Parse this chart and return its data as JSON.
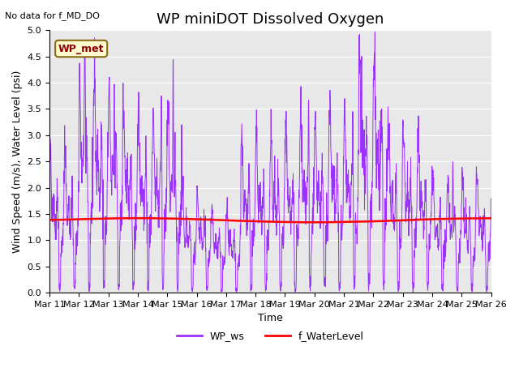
{
  "title": "WP miniDOT Dissolved Oxygen",
  "no_data_label": "No data for f_MD_DO",
  "annotation_label": "WP_met",
  "xlabel": "Time",
  "ylabel": "Wind Speed (m/s), Water Level (psi)",
  "ylim": [
    0.0,
    5.0
  ],
  "yticks": [
    0.0,
    0.5,
    1.0,
    1.5,
    2.0,
    2.5,
    3.0,
    3.5,
    4.0,
    4.5,
    5.0
  ],
  "xtick_labels": [
    "Mar 11",
    "Mar 12",
    "Mar 13",
    "Mar 14",
    "Mar 15",
    "Mar 16",
    "Mar 17",
    "Mar 18",
    "Mar 19",
    "Mar 20",
    "Mar 21",
    "Mar 22",
    "Mar 23",
    "Mar 24",
    "Mar 25",
    "Mar 26"
  ],
  "wp_ws_color": "#9B30FF",
  "f_wl_color": "#FF0000",
  "background_color": "#E8E8E8",
  "legend_wp_ws": "WP_ws",
  "legend_f_wl": "f_WaterLevel",
  "title_fontsize": 13,
  "label_fontsize": 9,
  "tick_fontsize": 8,
  "figsize": [
    6.4,
    4.8
  ],
  "dpi": 100
}
